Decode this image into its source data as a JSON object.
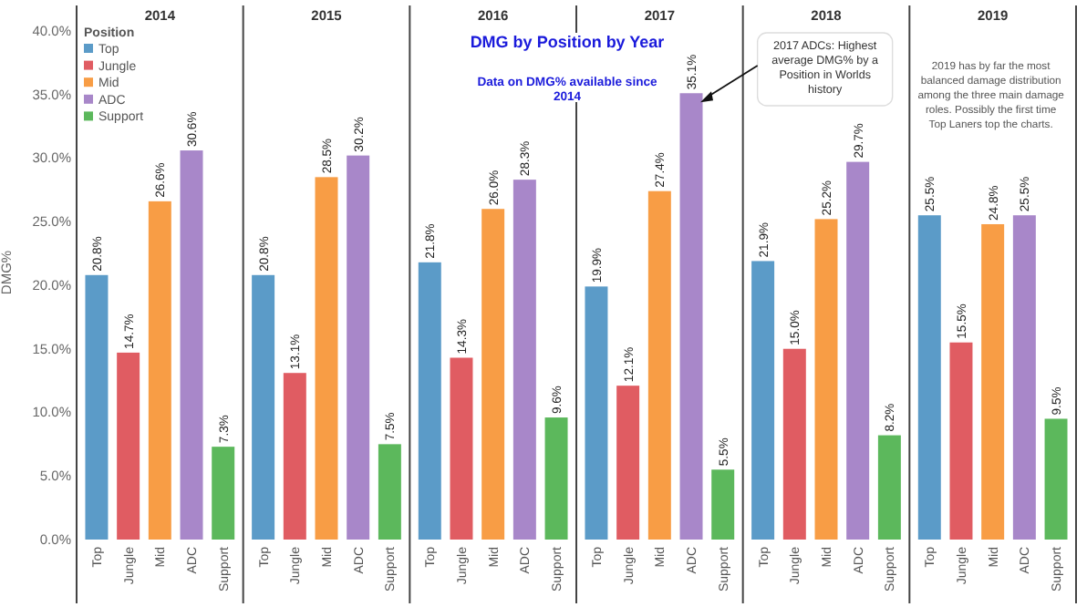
{
  "chart_data": [
    {
      "type": "bar",
      "stacked": true,
      "xlabel": "2014",
      "ylabel": "DMG%",
      "legend_title": "Position",
      "legend": "top left",
      "categories": [
        "Top",
        "Jungle",
        "Mid",
        "ADC",
        "Support"
      ],
      "series": [
        {
          "name": "Top",
          "color": "#5b9bc8",
          "values": [
            20.8,
            null,
            null,
            null,
            null
          ],
          "value_labels": [
            "20.8%",
            null,
            null,
            null,
            null
          ]
        },
        {
          "name": "Jungle",
          "color": "#e05c62",
          "values": [
            null,
            14.7,
            null,
            null,
            null
          ],
          "value_labels": [
            null,
            "14.7%",
            null,
            null,
            null
          ]
        },
        {
          "name": "Mid",
          "color": "#f89d45",
          "values": [
            null,
            null,
            26.6,
            null,
            null
          ],
          "value_labels": [
            null,
            null,
            "26.6%",
            null,
            null
          ]
        },
        {
          "name": "ADC",
          "color": "#a887c9",
          "values": [
            null,
            null,
            null,
            30.6,
            null
          ],
          "value_labels": [
            null,
            null,
            null,
            "30.6%",
            null
          ]
        },
        {
          "name": "Support",
          "color": "#5cb85c",
          "values": [
            null,
            null,
            null,
            null,
            7.3
          ],
          "value_labels": [
            null,
            null,
            null,
            null,
            "7.3%"
          ]
        }
      ],
      "ylim": [
        0,
        42
      ],
      "yticks": [
        {
          "value": 0,
          "label": "0.0%"
        },
        {
          "value": 5,
          "label": "5.0%"
        },
        {
          "value": 10,
          "label": "10.0%"
        },
        {
          "value": 15,
          "label": "15.0%"
        },
        {
          "value": 20,
          "label": "20.0%"
        },
        {
          "value": 25,
          "label": "25.0%"
        },
        {
          "value": 30,
          "label": "30.0%"
        },
        {
          "value": 35,
          "label": "35.0%"
        },
        {
          "value": 40,
          "label": "40.0%"
        }
      ]
    },
    {
      "type": "bar",
      "stacked": true,
      "xlabel": "2015",
      "categories": [
        "Top",
        "Jungle",
        "Mid",
        "ADC",
        "Support"
      ],
      "series": [
        {
          "color": "#5b9bc8",
          "values": [
            20.8,
            null,
            null,
            null,
            null
          ],
          "value_labels": [
            "20.8%",
            null,
            null,
            null,
            null
          ]
        },
        {
          "color": "#e05c62",
          "values": [
            null,
            13.1,
            null,
            null,
            null
          ],
          "value_labels": [
            null,
            "13.1%",
            null,
            null,
            null
          ]
        },
        {
          "color": "#f89d45",
          "values": [
            null,
            null,
            28.5,
            null,
            null
          ],
          "value_labels": [
            null,
            null,
            "28.5%",
            null,
            null
          ]
        },
        {
          "color": "#a887c9",
          "values": [
            null,
            null,
            null,
            30.2,
            null
          ],
          "value_labels": [
            null,
            null,
            null,
            "30.2%",
            null
          ]
        },
        {
          "color": "#5cb85c",
          "values": [
            null,
            null,
            null,
            null,
            7.5
          ],
          "value_labels": [
            null,
            null,
            null,
            null,
            "7.5%"
          ]
        }
      ],
      "ylim": [
        0,
        42
      ],
      "tick_labels": "x"
    },
    {
      "type": "bar",
      "stacked": true,
      "title": "DMG by Position by Year",
      "subtitle": "Data on DMG% available since 2014",
      "xlabel": "2016",
      "categories": [
        "Top",
        "Jungle",
        "Mid",
        "ADC",
        "Support"
      ],
      "series": [
        {
          "color": "#5b9bc8",
          "values": [
            21.8,
            null,
            null,
            null,
            null
          ],
          "value_labels": [
            "21.8%",
            null,
            null,
            null,
            null
          ]
        },
        {
          "color": "#e05c62",
          "values": [
            null,
            14.3,
            null,
            null,
            null
          ],
          "value_labels": [
            null,
            "14.3%",
            null,
            null,
            null
          ]
        },
        {
          "color": "#f89d45",
          "values": [
            null,
            null,
            26.0,
            null,
            null
          ],
          "value_labels": [
            null,
            null,
            "26.0%",
            null,
            null
          ]
        },
        {
          "color": "#a887c9",
          "values": [
            null,
            null,
            null,
            28.3,
            null
          ],
          "value_labels": [
            null,
            null,
            null,
            "28.3%",
            null
          ]
        },
        {
          "color": "#5cb85c",
          "values": [
            null,
            null,
            null,
            null,
            9.6
          ],
          "value_labels": [
            null,
            null,
            null,
            null,
            "9.6%"
          ]
        }
      ],
      "ylim": [
        0,
        42
      ],
      "tick_labels": "x"
    },
    {
      "type": "bar",
      "stacked": true,
      "xlabel": "2017",
      "categories": [
        "Top",
        "Jungle",
        "Mid",
        "ADC",
        "Support"
      ],
      "series": [
        {
          "color": "#5b9bc8",
          "values": [
            19.9,
            null,
            null,
            null,
            null
          ],
          "value_labels": [
            "19.9%",
            null,
            null,
            null,
            null
          ]
        },
        {
          "color": "#e05c62",
          "values": [
            null,
            12.1,
            null,
            null,
            null
          ],
          "value_labels": [
            null,
            "12.1%",
            null,
            null,
            null
          ]
        },
        {
          "color": "#f89d45",
          "values": [
            null,
            null,
            27.4,
            null,
            null
          ],
          "value_labels": [
            null,
            null,
            "27.4%",
            null,
            null
          ]
        },
        {
          "color": "#a887c9",
          "values": [
            null,
            null,
            null,
            35.1,
            null
          ],
          "value_labels": [
            null,
            null,
            null,
            "35.1%",
            null
          ]
        },
        {
          "color": "#5cb85c",
          "values": [
            null,
            null,
            null,
            null,
            5.5
          ],
          "value_labels": [
            null,
            null,
            null,
            null,
            "5.5%"
          ]
        }
      ],
      "ylim": [
        0,
        42
      ],
      "tick_labels": "x",
      "annotations": [
        {
          "text": "2017 ADCs: Highest average DMG% by a Position in Worlds history",
          "x": "ADC",
          "y": 35.1
        }
      ]
    },
    {
      "type": "bar",
      "stacked": true,
      "xlabel": "2018",
      "categories": [
        "Top",
        "Jungle",
        "Mid",
        "ADC",
        "Support"
      ],
      "series": [
        {
          "color": "#5b9bc8",
          "values": [
            21.9,
            null,
            null,
            null,
            null
          ],
          "value_labels": [
            "21.9%",
            null,
            null,
            null,
            null
          ]
        },
        {
          "color": "#e05c62",
          "values": [
            null,
            15.0,
            null,
            null,
            null
          ],
          "value_labels": [
            null,
            "15.0%",
            null,
            null,
            null
          ]
        },
        {
          "color": "#f89d45",
          "values": [
            null,
            null,
            25.2,
            null,
            null
          ],
          "value_labels": [
            null,
            null,
            "25.2%",
            null,
            null
          ]
        },
        {
          "color": "#a887c9",
          "values": [
            null,
            null,
            null,
            29.7,
            null
          ],
          "value_labels": [
            null,
            null,
            null,
            "29.7%",
            null
          ]
        },
        {
          "color": "#5cb85c",
          "values": [
            null,
            null,
            null,
            null,
            8.2
          ],
          "value_labels": [
            null,
            null,
            null,
            null,
            "8.2%"
          ]
        }
      ],
      "ylim": [
        0,
        42
      ],
      "tick_labels": "x"
    },
    {
      "type": "bar",
      "stacked": true,
      "xlabel": "2019",
      "categories": [
        "Top",
        "Jungle",
        "Mid",
        "ADC",
        "Support"
      ],
      "series": [
        {
          "color": "#5b9bc8",
          "values": [
            25.5,
            null,
            null,
            null,
            null
          ],
          "value_labels": [
            "25.5%",
            null,
            null,
            null,
            null
          ]
        },
        {
          "color": "#e05c62",
          "values": [
            null,
            15.5,
            null,
            null,
            null
          ],
          "value_labels": [
            null,
            "15.5%",
            null,
            null,
            null
          ]
        },
        {
          "color": "#f89d45",
          "values": [
            null,
            null,
            24.8,
            null,
            null
          ],
          "value_labels": [
            null,
            null,
            "24.8%",
            null,
            null
          ]
        },
        {
          "color": "#a887c9",
          "values": [
            null,
            null,
            null,
            25.5,
            null
          ],
          "value_labels": [
            null,
            null,
            null,
            "25.5%",
            null
          ]
        },
        {
          "color": "#5cb85c",
          "values": [
            null,
            null,
            null,
            null,
            9.5
          ],
          "value_labels": [
            null,
            null,
            null,
            null,
            "9.5%"
          ]
        }
      ],
      "ylim": [
        0,
        42
      ],
      "tick_labels": "x",
      "annotations": [
        "2019 has by far the most balanced damage distribution among the three main damage roles. Possibly the first time Top Laners top the charts."
      ]
    }
  ]
}
